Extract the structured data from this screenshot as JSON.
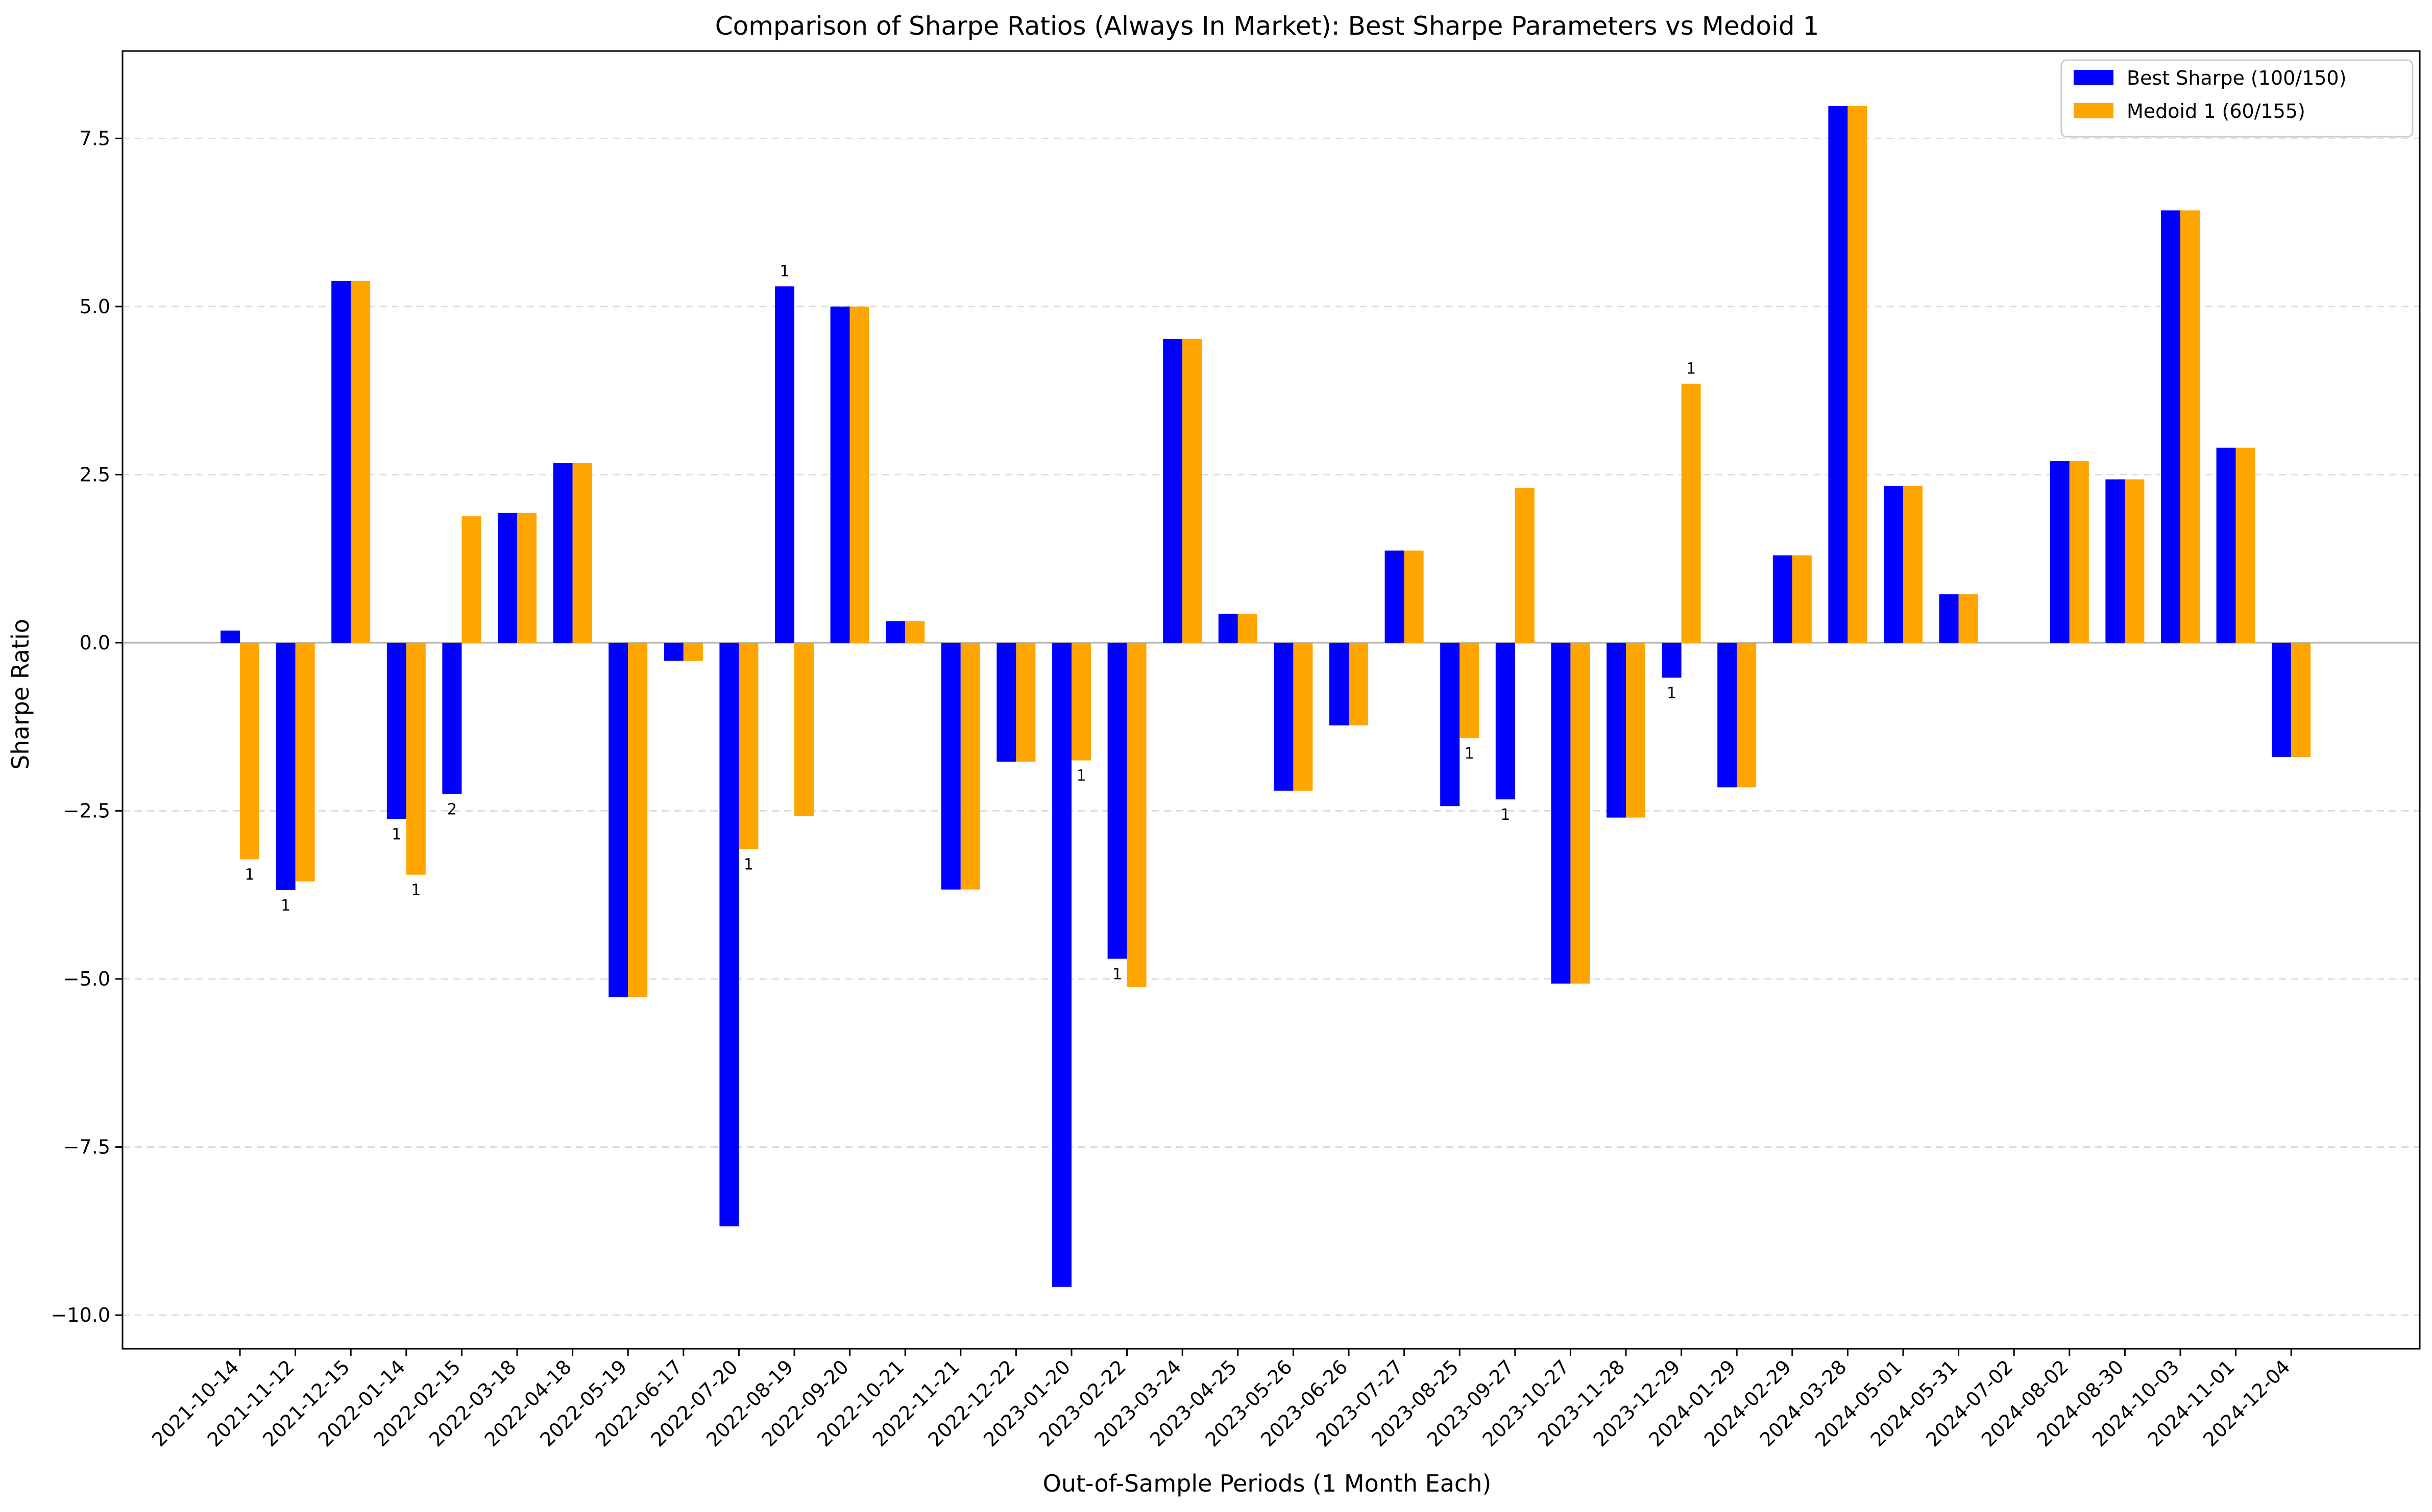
{
  "chart_data": {
    "type": "bar",
    "title": "Comparison of Sharpe Ratios (Always In Market): Best Sharpe Parameters vs Medoid 1",
    "xlabel": "Out-of-Sample Periods (1 Month Each)",
    "ylabel": "Sharpe Ratio",
    "ylim": [
      -10.5,
      8.8
    ],
    "yticks": [
      -10.0,
      -7.5,
      -5.0,
      -2.5,
      0.0,
      2.5,
      5.0,
      7.5
    ],
    "ytick_labels": [
      "−10.0",
      "−7.5",
      "−5.0",
      "−2.5",
      "0.0",
      "2.5",
      "5.0",
      "7.5"
    ],
    "grid": "horizontal dashed",
    "legend_position": "top-right",
    "categories": [
      "2021-10-14",
      "2021-11-12",
      "2021-12-15",
      "2022-01-14",
      "2022-02-15",
      "2022-03-18",
      "2022-04-18",
      "2022-05-19",
      "2022-06-17",
      "2022-07-20",
      "2022-08-19",
      "2022-09-20",
      "2022-10-21",
      "2022-11-21",
      "2022-12-22",
      "2023-01-20",
      "2023-02-22",
      "2023-03-24",
      "2023-04-25",
      "2023-05-26",
      "2023-06-26",
      "2023-07-27",
      "2023-08-25",
      "2023-09-27",
      "2023-10-27",
      "2023-11-28",
      "2023-12-29",
      "2024-01-29",
      "2024-02-29",
      "2024-03-28",
      "2024-05-01",
      "2024-05-31",
      "2024-07-02",
      "2024-08-02",
      "2024-08-30",
      "2024-10-03",
      "2024-11-01",
      "2024-12-04"
    ],
    "series": [
      {
        "name": "Best Sharpe (100/150)",
        "color": "#0000ff",
        "values": [
          0.18,
          -3.68,
          5.38,
          -2.62,
          -2.25,
          1.93,
          2.67,
          -5.27,
          -0.27,
          -8.68,
          5.3,
          5.0,
          0.32,
          -3.67,
          -1.77,
          -9.58,
          -4.7,
          4.52,
          0.43,
          -2.2,
          -1.23,
          1.37,
          -2.43,
          -2.33,
          -5.07,
          -2.6,
          -0.52,
          -2.15,
          1.3,
          7.98,
          2.33,
          0.72,
          0.0,
          2.7,
          2.43,
          6.43,
          2.9,
          -1.7
        ]
      },
      {
        "name": "Medoid 1 (60/155)",
        "color": "#ffa500",
        "values": [
          -3.22,
          -3.55,
          5.38,
          -3.45,
          1.88,
          1.93,
          2.67,
          -5.27,
          -0.27,
          -3.07,
          -2.58,
          5.0,
          0.32,
          -3.67,
          -1.77,
          -1.75,
          -5.12,
          4.52,
          0.43,
          -2.2,
          -1.23,
          1.37,
          -1.42,
          2.3,
          -5.07,
          -2.6,
          3.85,
          -2.15,
          1.3,
          7.98,
          2.33,
          0.72,
          0.0,
          2.7,
          2.43,
          6.43,
          2.9,
          -1.7
        ]
      }
    ],
    "annotations": [
      {
        "category_index": 0,
        "series": 1,
        "text": "1"
      },
      {
        "category_index": 1,
        "series": 0,
        "text": "1"
      },
      {
        "category_index": 3,
        "series": 0,
        "text": "1"
      },
      {
        "category_index": 3,
        "series": 1,
        "text": "1"
      },
      {
        "category_index": 4,
        "series": 0,
        "text": "2"
      },
      {
        "category_index": 9,
        "series": 1,
        "text": "1"
      },
      {
        "category_index": 10,
        "series": 0,
        "text": "1"
      },
      {
        "category_index": 15,
        "series": 1,
        "text": "1"
      },
      {
        "category_index": 16,
        "series": 0,
        "text": "1"
      },
      {
        "category_index": 22,
        "series": 1,
        "text": "1"
      },
      {
        "category_index": 23,
        "series": 0,
        "text": "1"
      },
      {
        "category_index": 26,
        "series": 0,
        "text": "1"
      },
      {
        "category_index": 26,
        "series": 1,
        "text": "1"
      }
    ]
  }
}
